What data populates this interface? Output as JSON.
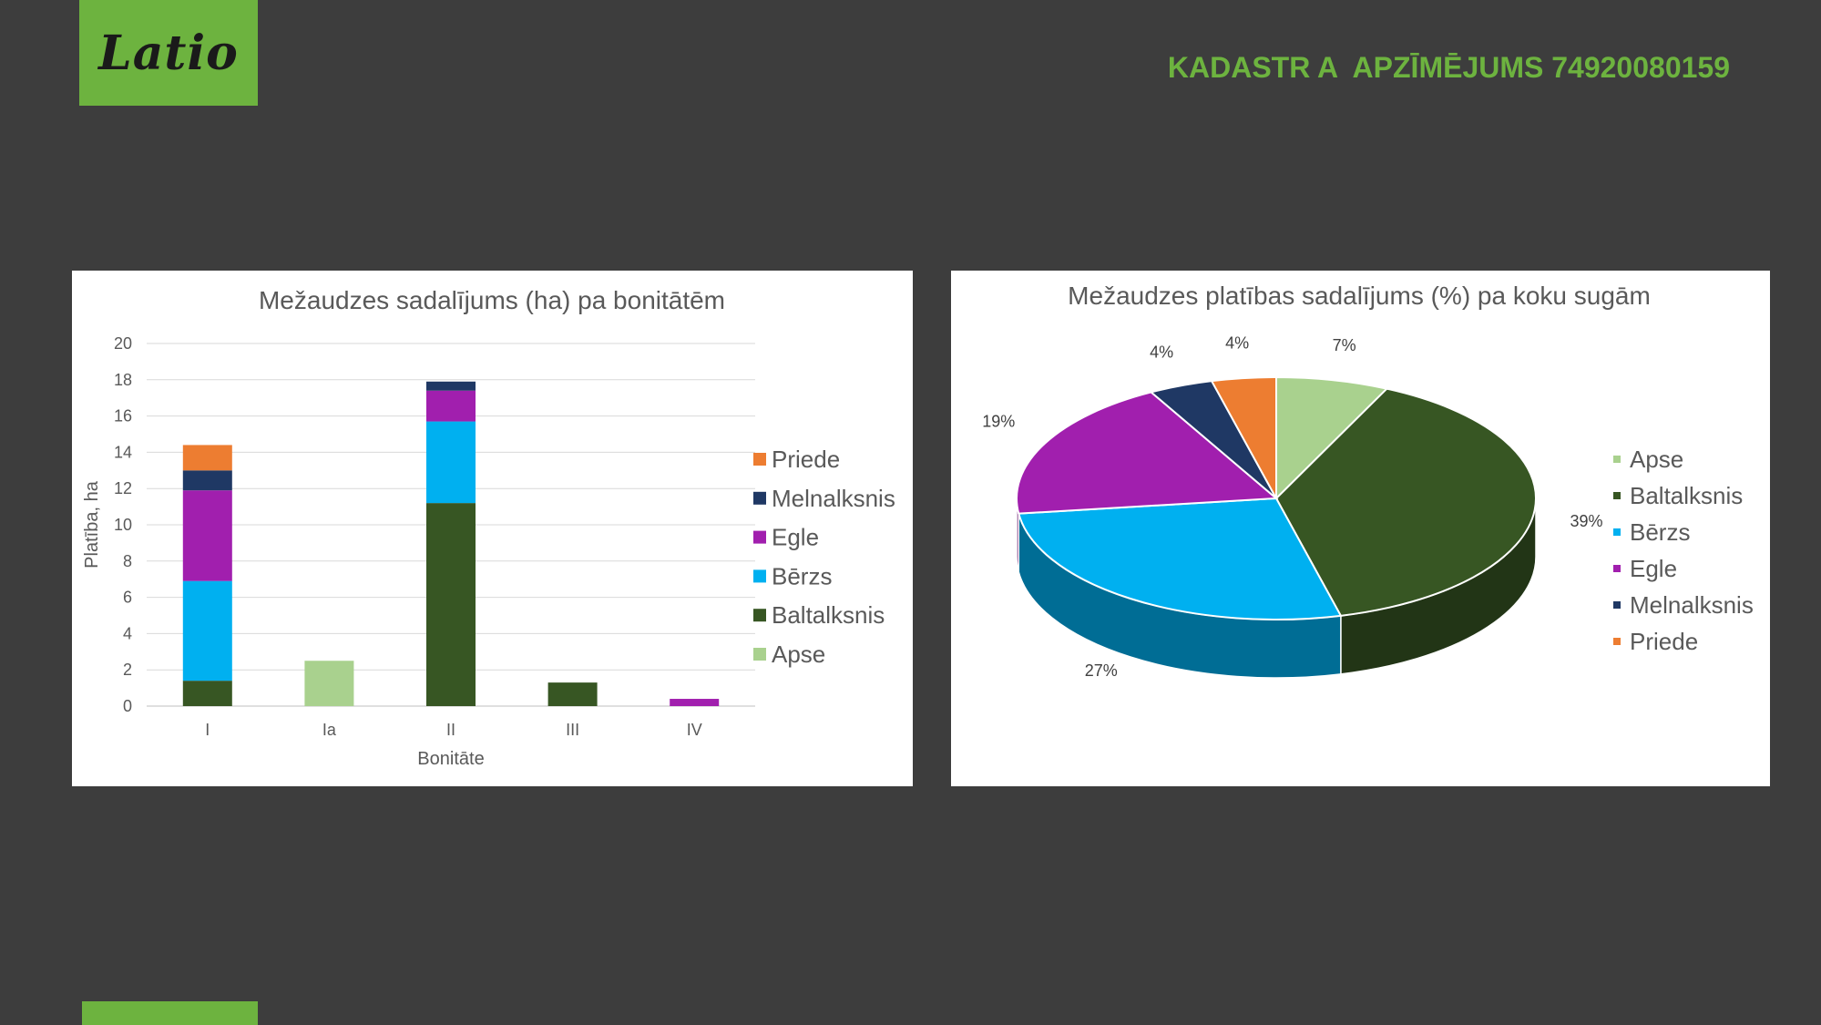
{
  "header": {
    "logo_text": "Latio",
    "title": "KADASTR A  APZĪMĒJUMS 74920080159"
  },
  "colors": {
    "accent": "#6db33f",
    "background": "#3d3d3d",
    "Apse": "#a9d18e",
    "Baltalksnis": "#375623",
    "Bērzs": "#00b0f0",
    "Egle": "#a11fae",
    "Melnalksnis": "#1f3864",
    "Priede": "#ed7d31"
  },
  "chart_data": [
    {
      "type": "bar",
      "stacked": true,
      "title": "Mežaudzes sadalījums (ha) pa bonitātēm",
      "xlabel": "Bonitāte",
      "ylabel": "Platība, ha",
      "ylim": [
        0,
        20
      ],
      "yticks": [
        0,
        2,
        4,
        6,
        8,
        10,
        12,
        14,
        16,
        18,
        20
      ],
      "grid": true,
      "legend_position": "right",
      "categories": [
        "I",
        "Ia",
        "II",
        "III",
        "IV"
      ],
      "series": [
        {
          "name": "Apse",
          "values": [
            0,
            2.5,
            0,
            0,
            0
          ]
        },
        {
          "name": "Baltalksnis",
          "values": [
            1.4,
            0,
            11.2,
            1.3,
            0
          ]
        },
        {
          "name": "Bērzs",
          "values": [
            5.5,
            0,
            4.5,
            0,
            0
          ]
        },
        {
          "name": "Egle",
          "values": [
            5.0,
            0,
            1.7,
            0,
            0.4
          ]
        },
        {
          "name": "Melnalksnis",
          "values": [
            1.1,
            0,
            0.5,
            0,
            0
          ]
        },
        {
          "name": "Priede",
          "values": [
            1.4,
            0,
            0,
            0,
            0
          ]
        }
      ],
      "legend_order": [
        "Priede",
        "Melnalksnis",
        "Egle",
        "Bērzs",
        "Baltalksnis",
        "Apse"
      ]
    },
    {
      "type": "pie",
      "title": "Mežaudzes platības sadalījums (%) pa koku sugām",
      "legend_position": "right",
      "categories": [
        "Apse",
        "Baltalksnis",
        "Bērzs",
        "Egle",
        "Melnalksnis",
        "Priede"
      ],
      "values": [
        7,
        39,
        27,
        19,
        4,
        4
      ],
      "labels": [
        "7%",
        "39%",
        "27%",
        "19%",
        "4%",
        "4%"
      ]
    }
  ]
}
